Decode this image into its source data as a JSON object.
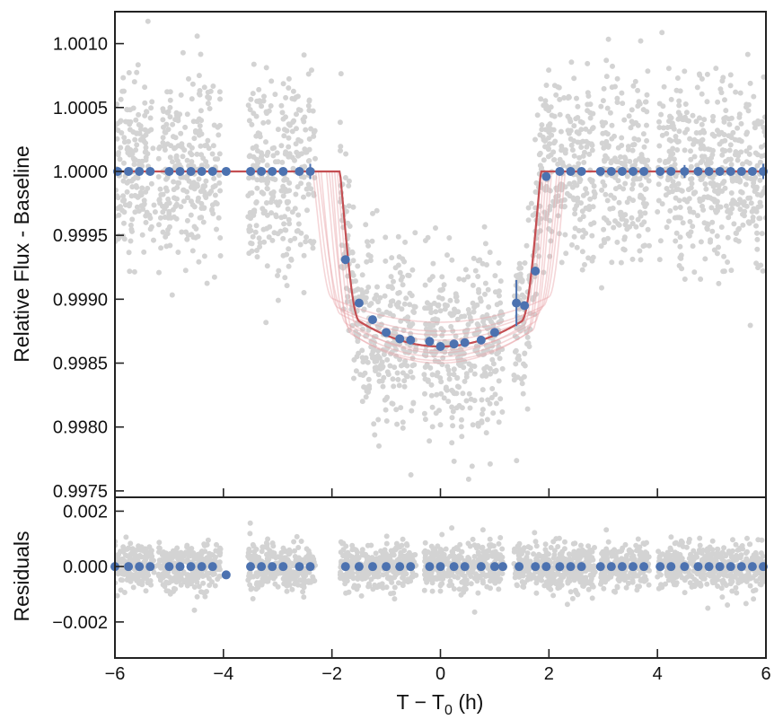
{
  "chart_data": [
    {
      "type": "scatter",
      "panel": "top",
      "ylabel": "Relative Flux - Baseline",
      "xlim": [
        -6,
        6
      ],
      "ylim": [
        0.99745,
        1.00125
      ],
      "xticks": [
        -6,
        -4,
        -2,
        0,
        2,
        4,
        6
      ],
      "yticks": [
        {
          "value": 1.001,
          "label": "1.0010"
        },
        {
          "value": 1.0005,
          "label": "1.0005"
        },
        {
          "value": 1.0,
          "label": "1.0000"
        },
        {
          "value": 0.9995,
          "label": "0.9995"
        },
        {
          "value": 0.999,
          "label": "0.9990"
        },
        {
          "value": 0.9985,
          "label": "0.9985"
        },
        {
          "value": 0.998,
          "label": "0.9980"
        },
        {
          "value": 0.9975,
          "label": "0.9975"
        }
      ],
      "colors": {
        "raw": "#d3d3d3",
        "binned": "#4c72b0",
        "model": "#c44e52",
        "model_samples": "#e8a5a8"
      },
      "raw_segments": [
        [
          -6.0,
          -5.25
        ],
        [
          -5.2,
          -4.05
        ],
        [
          -3.55,
          -2.3
        ],
        [
          -1.85,
          -0.45
        ],
        [
          -0.3,
          1.15
        ],
        [
          1.35,
          2.85
        ],
        [
          2.95,
          3.85
        ],
        [
          4.0,
          6.0
        ]
      ],
      "model": {
        "t1": -1.85,
        "t2": -1.5,
        "t3": 1.5,
        "t4": 1.85,
        "depth": 0.00137
      },
      "binned": [
        {
          "x": -5.95,
          "y": 1.0,
          "err": 0
        },
        {
          "x": -5.75,
          "y": 1.0,
          "err": 0
        },
        {
          "x": -5.55,
          "y": 1.0,
          "err": 0
        },
        {
          "x": -5.35,
          "y": 1.0,
          "err": 0
        },
        {
          "x": -5.0,
          "y": 1.0,
          "err": 0
        },
        {
          "x": -4.8,
          "y": 1.0,
          "err": 0
        },
        {
          "x": -4.6,
          "y": 1.0,
          "err": 0
        },
        {
          "x": -4.4,
          "y": 1.0,
          "err": 0
        },
        {
          "x": -4.2,
          "y": 1.0,
          "err": 0
        },
        {
          "x": -3.95,
          "y": 1.0,
          "err": 0
        },
        {
          "x": -3.5,
          "y": 1.0,
          "err": 0
        },
        {
          "x": -3.3,
          "y": 1.0,
          "err": 0
        },
        {
          "x": -3.1,
          "y": 1.0,
          "err": 0
        },
        {
          "x": -2.9,
          "y": 1.0,
          "err": 0
        },
        {
          "x": -2.6,
          "y": 1.0,
          "err": 0
        },
        {
          "x": -2.4,
          "y": 1.0,
          "err": 6e-05
        },
        {
          "x": -1.75,
          "y": 0.99931,
          "err": 0
        },
        {
          "x": -1.5,
          "y": 0.99897,
          "err": 0
        },
        {
          "x": -1.25,
          "y": 0.99884,
          "err": 0
        },
        {
          "x": -1.0,
          "y": 0.99874,
          "err": 0
        },
        {
          "x": -0.75,
          "y": 0.99869,
          "err": 0
        },
        {
          "x": -0.55,
          "y": 0.99868,
          "err": 0
        },
        {
          "x": -0.2,
          "y": 0.99867,
          "err": 0
        },
        {
          "x": 0.0,
          "y": 0.99863,
          "err": 0
        },
        {
          "x": 0.25,
          "y": 0.99865,
          "err": 0
        },
        {
          "x": 0.45,
          "y": 0.99866,
          "err": 0
        },
        {
          "x": 0.75,
          "y": 0.99868,
          "err": 0
        },
        {
          "x": 1.0,
          "y": 0.99874,
          "err": 0
        },
        {
          "x": 1.4,
          "y": 0.99897,
          "err": 0.00018
        },
        {
          "x": 1.55,
          "y": 0.99895,
          "err": 0
        },
        {
          "x": 1.75,
          "y": 0.99922,
          "err": 0
        },
        {
          "x": 1.95,
          "y": 0.99996,
          "err": 0
        },
        {
          "x": 2.2,
          "y": 1.0,
          "err": 0
        },
        {
          "x": 2.4,
          "y": 1.0,
          "err": 0
        },
        {
          "x": 2.6,
          "y": 1.0,
          "err": 0
        },
        {
          "x": 2.95,
          "y": 1.0,
          "err": 0
        },
        {
          "x": 3.15,
          "y": 1.0,
          "err": 0
        },
        {
          "x": 3.35,
          "y": 1.0,
          "err": 0
        },
        {
          "x": 3.55,
          "y": 1.0,
          "err": 0
        },
        {
          "x": 3.75,
          "y": 1.0,
          "err": 0
        },
        {
          "x": 4.05,
          "y": 1.0,
          "err": 0
        },
        {
          "x": 4.25,
          "y": 1.0,
          "err": 0
        },
        {
          "x": 4.5,
          "y": 1.0,
          "err": 5e-05
        },
        {
          "x": 4.75,
          "y": 1.0,
          "err": 0
        },
        {
          "x": 4.95,
          "y": 1.0,
          "err": 0
        },
        {
          "x": 5.15,
          "y": 1.0,
          "err": 0
        },
        {
          "x": 5.35,
          "y": 1.0,
          "err": 0
        },
        {
          "x": 5.55,
          "y": 1.0,
          "err": 0
        },
        {
          "x": 5.75,
          "y": 1.0,
          "err": 0
        },
        {
          "x": 5.95,
          "y": 1.0,
          "err": 6e-05
        }
      ]
    },
    {
      "type": "scatter",
      "panel": "bottom",
      "ylabel": "Residuals",
      "xlabel": "T − T",
      "xlabel_sub": "0",
      "xlabel_suffix": " (h)",
      "xlim": [
        -6,
        6
      ],
      "ylim": [
        -0.0033,
        0.0025
      ],
      "xticks": [
        {
          "value": -6,
          "label": "−6"
        },
        {
          "value": -4,
          "label": "−4"
        },
        {
          "value": -2,
          "label": "−2"
        },
        {
          "value": 0,
          "label": "0"
        },
        {
          "value": 2,
          "label": "2"
        },
        {
          "value": 4,
          "label": "4"
        },
        {
          "value": 6,
          "label": "6"
        }
      ],
      "yticks": [
        {
          "value": 0.002,
          "label": "0.002"
        },
        {
          "value": 0.0,
          "label": "0.000"
        },
        {
          "value": -0.002,
          "label": "−0.002"
        }
      ],
      "binned": [
        {
          "x": -6.0,
          "y": 0.0
        },
        {
          "x": -5.75,
          "y": 0.0
        },
        {
          "x": -5.55,
          "y": 0.0
        },
        {
          "x": -5.35,
          "y": 0.0
        },
        {
          "x": -5.0,
          "y": 0.0
        },
        {
          "x": -4.8,
          "y": 0.0
        },
        {
          "x": -4.6,
          "y": 0.0
        },
        {
          "x": -4.4,
          "y": 0.0
        },
        {
          "x": -4.2,
          "y": 0.0
        },
        {
          "x": -3.95,
          "y": -0.0003
        },
        {
          "x": -3.5,
          "y": 0.0
        },
        {
          "x": -3.3,
          "y": 0.0
        },
        {
          "x": -3.1,
          "y": 0.0
        },
        {
          "x": -2.9,
          "y": 0.0
        },
        {
          "x": -2.6,
          "y": 0.0
        },
        {
          "x": -2.4,
          "y": 0.0
        },
        {
          "x": -1.75,
          "y": 0.0
        },
        {
          "x": -1.5,
          "y": 0.0
        },
        {
          "x": -1.25,
          "y": 0.0
        },
        {
          "x": -1.0,
          "y": 0.0
        },
        {
          "x": -0.75,
          "y": 0.0
        },
        {
          "x": -0.55,
          "y": 0.0
        },
        {
          "x": -0.2,
          "y": 0.0
        },
        {
          "x": 0.0,
          "y": 0.0
        },
        {
          "x": 0.25,
          "y": 0.0
        },
        {
          "x": 0.45,
          "y": 0.0
        },
        {
          "x": 0.75,
          "y": 0.0
        },
        {
          "x": 1.0,
          "y": 0.0
        },
        {
          "x": 1.15,
          "y": 0.0
        },
        {
          "x": 1.45,
          "y": 0.0
        },
        {
          "x": 1.75,
          "y": 0.0
        },
        {
          "x": 1.95,
          "y": 0.0
        },
        {
          "x": 2.2,
          "y": 0.0
        },
        {
          "x": 2.4,
          "y": 0.0
        },
        {
          "x": 2.6,
          "y": 0.0
        },
        {
          "x": 2.95,
          "y": 0.0
        },
        {
          "x": 3.15,
          "y": 0.0
        },
        {
          "x": 3.35,
          "y": 0.0
        },
        {
          "x": 3.55,
          "y": 0.0
        },
        {
          "x": 3.75,
          "y": 0.0
        },
        {
          "x": 4.05,
          "y": 0.0
        },
        {
          "x": 4.25,
          "y": 0.0
        },
        {
          "x": 4.5,
          "y": 0.0
        },
        {
          "x": 4.75,
          "y": 0.0
        },
        {
          "x": 4.95,
          "y": 0.0
        },
        {
          "x": 5.15,
          "y": 0.0
        },
        {
          "x": 5.35,
          "y": 0.0
        },
        {
          "x": 5.55,
          "y": 0.0
        },
        {
          "x": 5.75,
          "y": 0.0
        },
        {
          "x": 5.95,
          "y": 0.0
        }
      ]
    }
  ]
}
